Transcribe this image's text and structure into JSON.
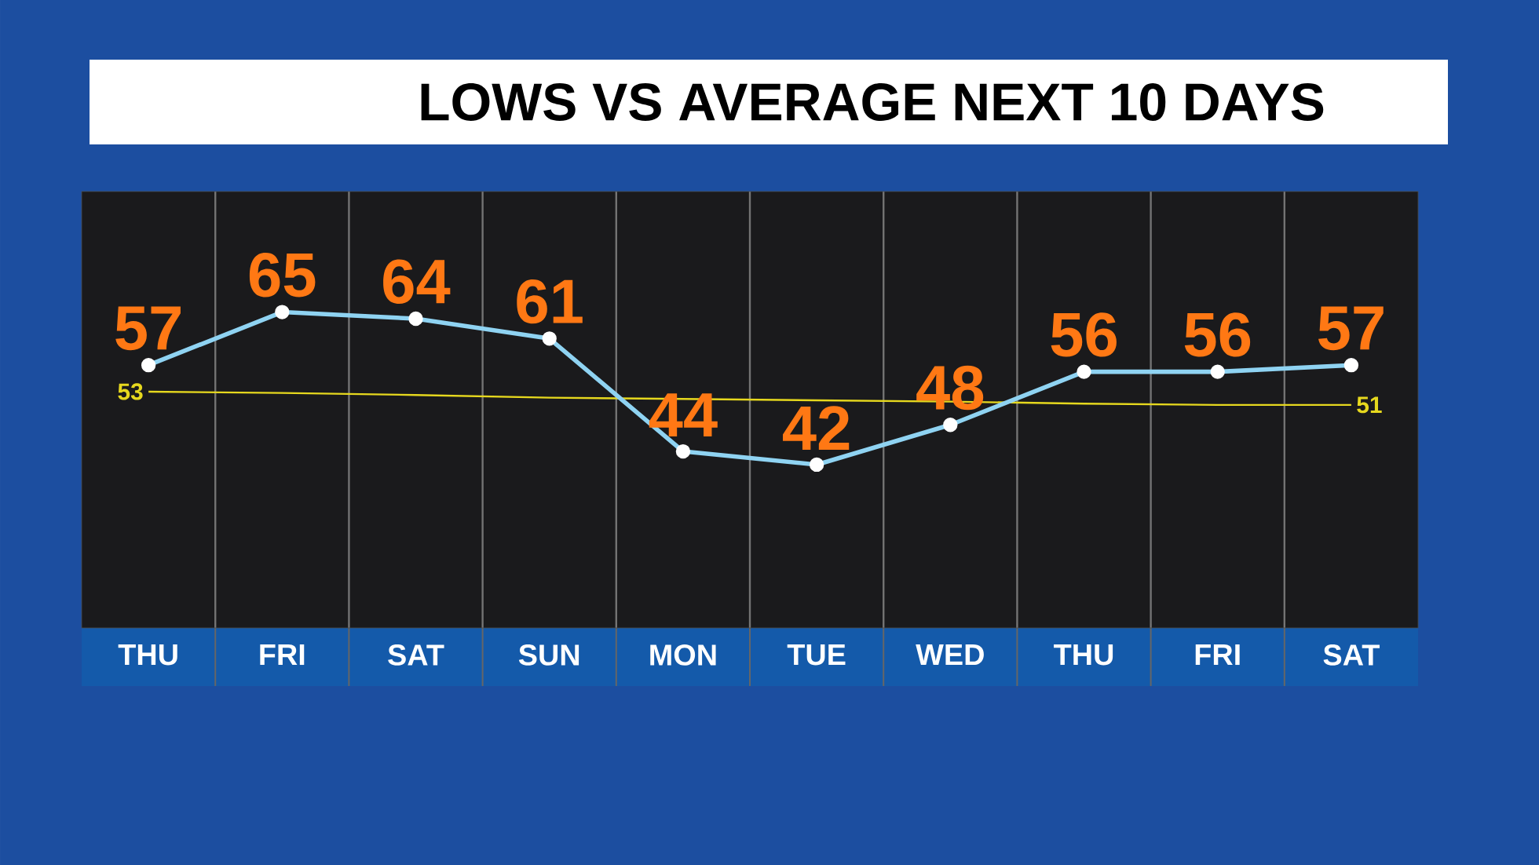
{
  "chart_data": {
    "type": "line",
    "title": "LOWS VS AVERAGE NEXT 10 DAYS",
    "categories": [
      "THU",
      "FRI",
      "SAT",
      "SUN",
      "MON",
      "TUE",
      "WED",
      "THU",
      "FRI",
      "SAT"
    ],
    "series": [
      {
        "color": "#e6d81e",
        "marker": "none",
        "values": [
          53,
          52.8,
          52.5,
          52.1,
          51.9,
          51.7,
          51.5,
          51.2,
          51,
          51
        ],
        "value_labels": [
          "53",
          null,
          null,
          null,
          null,
          null,
          null,
          null,
          null,
          "51"
        ]
      },
      {
        "color": "#8fd3f2",
        "marker": "circle",
        "values": [
          57,
          65,
          64,
          61,
          44,
          42,
          48,
          56,
          56,
          57
        ],
        "value_labels": [
          "57",
          "65",
          "64",
          "61",
          "44",
          "42",
          "48",
          "56",
          "56",
          "57"
        ]
      }
    ],
    "grid": "x"
  }
}
